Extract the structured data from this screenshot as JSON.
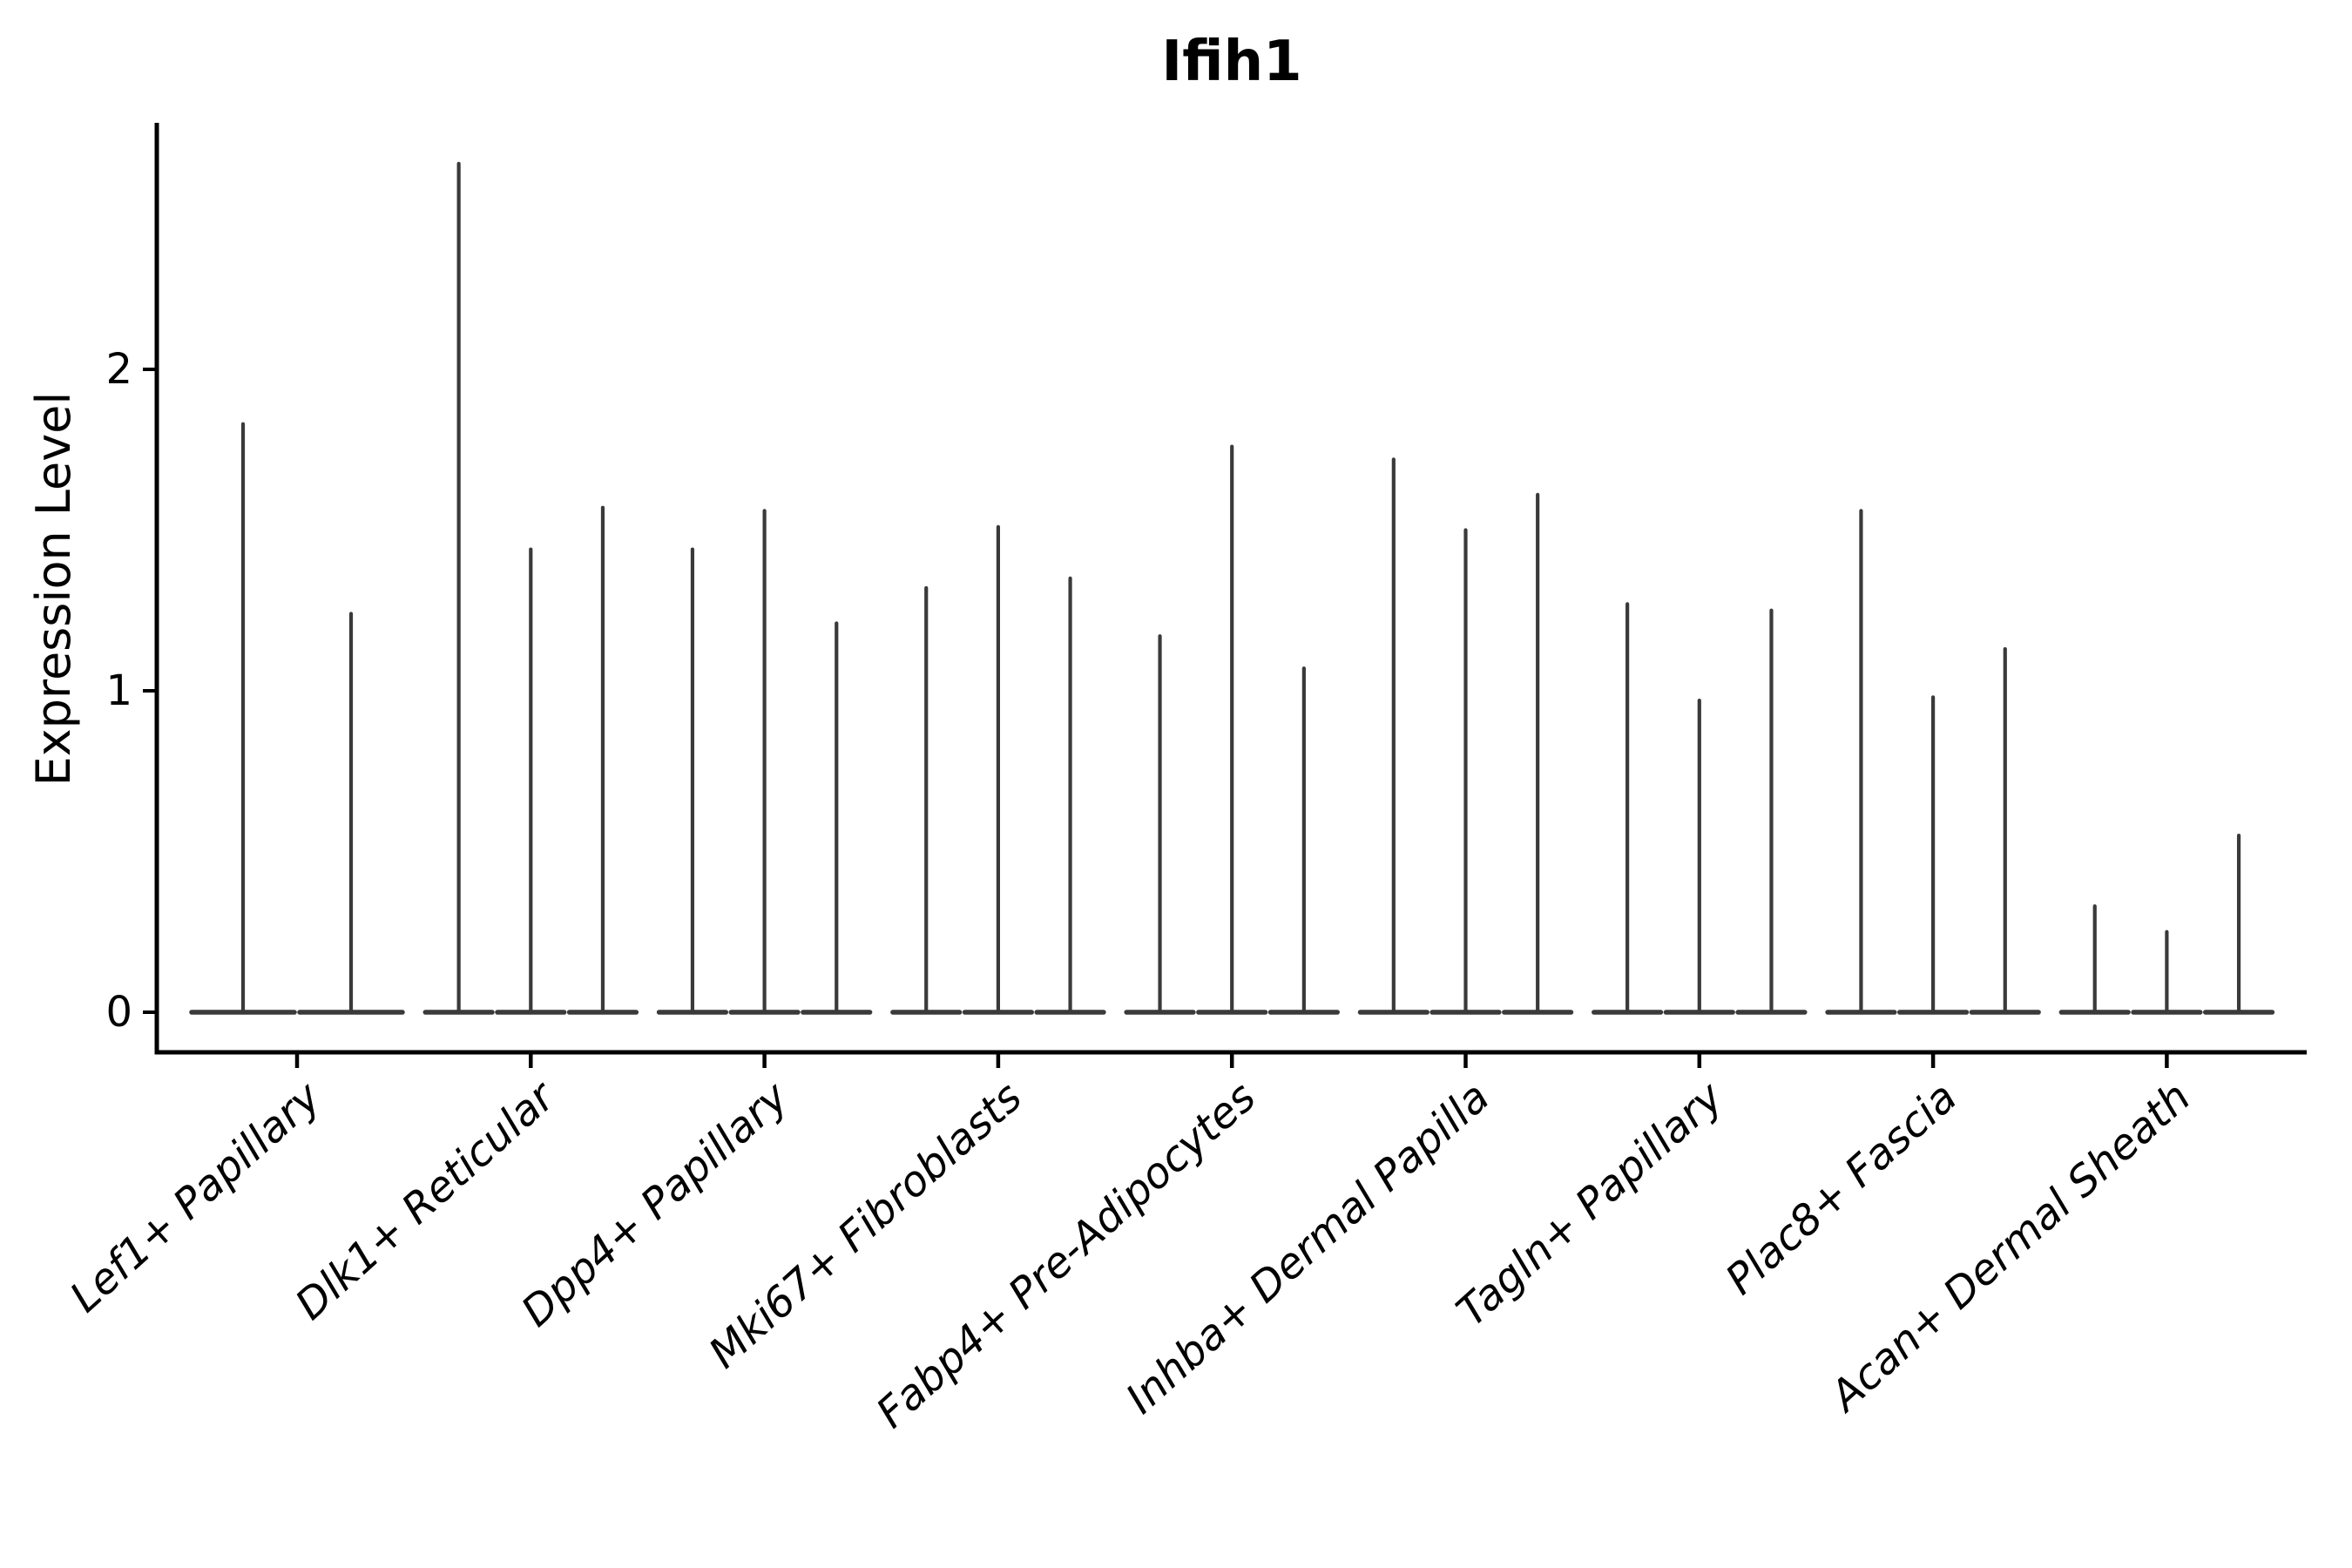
{
  "chart_data": {
    "type": "violin",
    "title": "Ifih1",
    "ylabel": "Expression Level",
    "xlabel": "",
    "categories": [
      "Lef1+ Papillary",
      "Dlk1+ Reticular",
      "Dpp4+ Papillary",
      "Mki67+ Fibroblasts",
      "Fabp4+ Pre-Adipocytes",
      "Inhba+ Dermal Papilla",
      "Tagln+ Papillary",
      "Plac8+ Fascia",
      "Acan+ Dermal Sheath"
    ],
    "violin_peaks": [
      [
        1.83,
        1.24
      ],
      [
        2.64,
        1.44,
        1.57
      ],
      [
        1.44,
        1.56,
        1.21
      ],
      [
        1.32,
        1.51,
        1.35
      ],
      [
        1.17,
        1.76,
        1.07
      ],
      [
        1.72,
        1.5,
        1.61
      ],
      [
        1.27,
        0.97,
        1.25
      ],
      [
        1.56,
        0.98,
        1.13
      ],
      [
        0.33,
        0.25,
        0.55
      ]
    ],
    "yticks": [
      0,
      1,
      2
    ],
    "ylim": [
      0,
      2.77
    ],
    "grid": false,
    "legend": null,
    "violin_color": "#3a3a3a",
    "axis_color": "#000000",
    "x_tick_label_rotation_deg": 42,
    "x_tick_label_style": "italic"
  }
}
